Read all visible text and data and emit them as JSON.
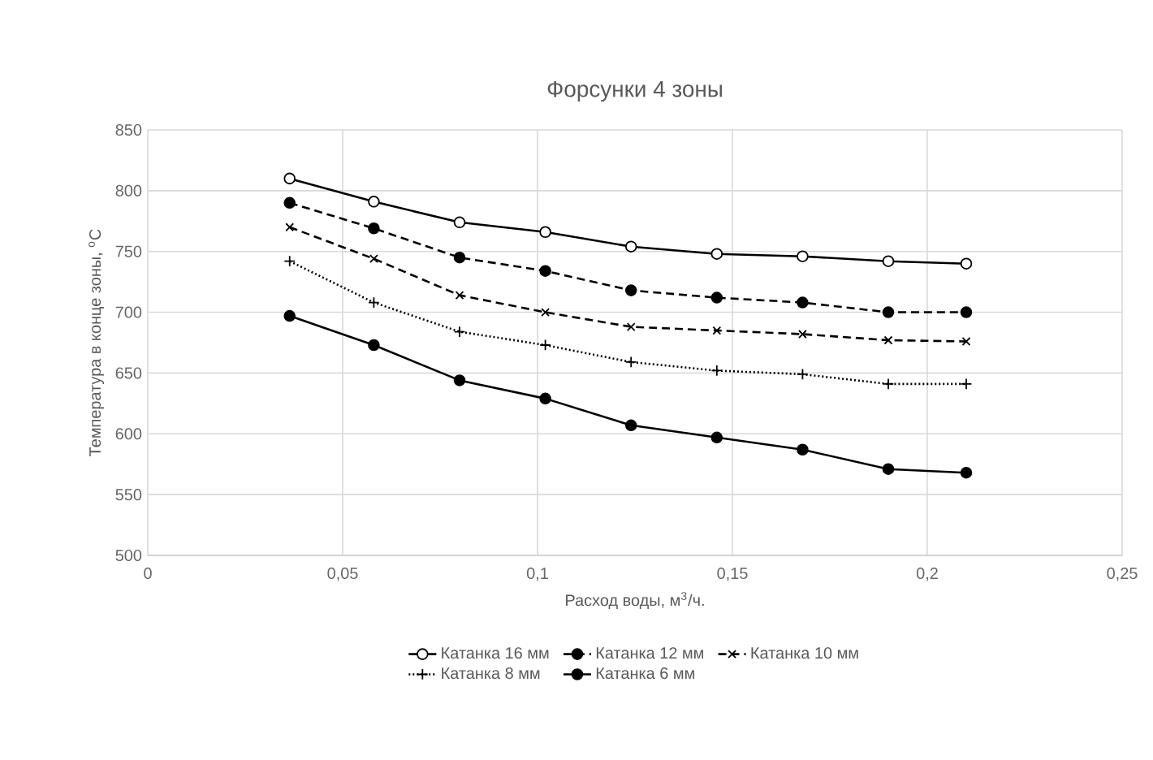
{
  "chart_data": {
    "type": "line",
    "title": "Форсунки 4 зоны",
    "xlabel": "Расход воды, м$^{3}$/ч.",
    "ylabel": "Температура в конце зоны, $^{о}$С",
    "x": [
      0.0364,
      0.058,
      0.08,
      0.102,
      0.124,
      0.146,
      0.168,
      0.19,
      0.21
    ],
    "series": [
      {
        "name": "Катанка 16 мм",
        "color": "#000000",
        "marker": "circle",
        "line_style": "solid",
        "values": [
          810,
          791,
          774,
          766,
          754,
          748,
          746,
          742,
          740
        ]
      },
      {
        "name": "Катанка 12 мм",
        "color": "#000000",
        "marker": "circle",
        "line_style": "dashed",
        "values": [
          790,
          769,
          745,
          734,
          718,
          712,
          708,
          700,
          700
        ]
      },
      {
        "name": "Катанка 10 мм",
        "color": "#000000",
        "marker": "cross",
        "line_style": "dashed",
        "values": [
          770,
          744,
          714,
          700,
          688,
          685,
          682,
          677,
          676
        ]
      },
      {
        "name": "Катанка 8 мм",
        "color": "#000000",
        "marker": "plus",
        "line_style": "dotted",
        "values": [
          742,
          708,
          684,
          673,
          659,
          652,
          649,
          641,
          641
        ]
      },
      {
        "name": "Катанка 6 мм",
        "color": "#000000",
        "marker": "circle",
        "line_style": "solid",
        "values": [
          697,
          673,
          644,
          629,
          607,
          597,
          587,
          571,
          568
        ]
      }
    ],
    "xlim": [
      0,
      0.25
    ],
    "ylim": [
      500,
      850
    ],
    "xticks": [
      0,
      {
        "value": 0.05,
        "label": "0,05"
      },
      {
        "value": 0.1,
        "label": "0,1"
      },
      {
        "value": 0.15,
        "label": "0,15"
      },
      {
        "value": 0.2,
        "label": "0,2"
      },
      {
        "value": 0.25,
        "label": "0,25"
      }
    ],
    "yticks": [
      500,
      550,
      600,
      650,
      700,
      750,
      800,
      850
    ],
    "grid": true,
    "legend": "bottom"
  }
}
